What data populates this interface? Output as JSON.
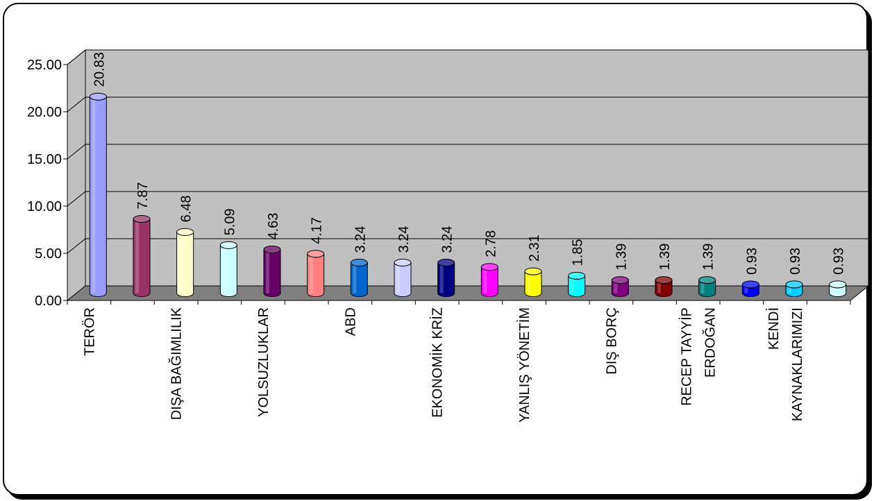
{
  "chart_data": {
    "type": "bar",
    "title": "",
    "xlabel": "",
    "ylabel": "",
    "ylim": [
      0,
      25
    ],
    "yticks": [
      "0.00",
      "5.00",
      "10.00",
      "15.00",
      "20.00",
      "25.00"
    ],
    "ytick_values": [
      0,
      5,
      10,
      15,
      20,
      25
    ],
    "grid": true,
    "legend": "none",
    "categories": [
      "TERÖR",
      "",
      "DIŞA BAĞIMLILIK",
      "",
      "YOLSUZLUKLAR",
      "",
      "ABD",
      "",
      "EKONOMİK KRİZ",
      "",
      "YANLIŞ YÖNETİM",
      "",
      "DIŞ BORÇ",
      "",
      "RECEP TAYYİP ERDOĞAN",
      "",
      "KENDİ KAYNAKLARIMIZI",
      ""
    ],
    "category_lines": [
      [
        "TERÖR"
      ],
      [],
      [
        "DIŞA BAĞIMLILIK"
      ],
      [],
      [
        "YOLSUZLUKLAR"
      ],
      [],
      [
        "ABD"
      ],
      [],
      [
        "EKONOMİK KRİZ"
      ],
      [],
      [
        "YANLIŞ YÖNETİM"
      ],
      [],
      [
        "DIŞ BORÇ"
      ],
      [],
      [
        "RECEP TAYYİP",
        "ERDOĞAN"
      ],
      [],
      [
        "KENDİ",
        "KAYNAKLARIMIZI"
      ],
      []
    ],
    "values": [
      20.83,
      7.87,
      6.48,
      5.09,
      4.63,
      4.17,
      3.24,
      3.24,
      3.24,
      2.78,
      2.31,
      1.85,
      1.39,
      1.39,
      1.39,
      0.93,
      0.93,
      0.93
    ],
    "value_labels": [
      "20.83",
      "7.87",
      "6.48",
      "5.09",
      "4.63",
      "4.17",
      "3.24",
      "3.24",
      "3.24",
      "2.78",
      "2.31",
      "1.85",
      "1.39",
      "1.39",
      "1.39",
      "0.93",
      "0.93",
      "0.93"
    ],
    "colors": [
      "#9999ff",
      "#993366",
      "#ffffcc",
      "#ccffff",
      "#660066",
      "#ff8080",
      "#0066cc",
      "#ccccff",
      "#000080",
      "#ff00ff",
      "#ffff00",
      "#00ffff",
      "#800080",
      "#800000",
      "#008080",
      "#0000ff",
      "#00ccff",
      "#ccffff"
    ],
    "wall_color": "#c0c0c0",
    "floor_color": "#808080"
  }
}
